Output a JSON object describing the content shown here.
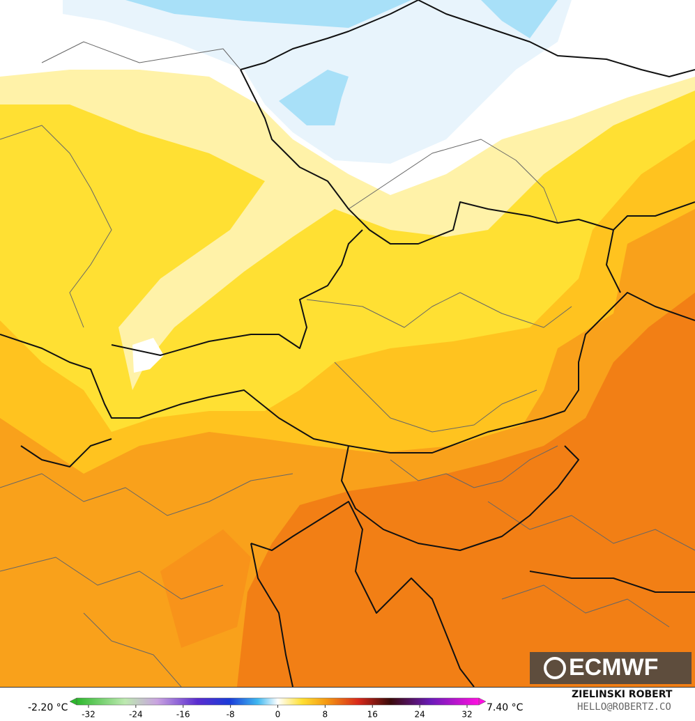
{
  "map": {
    "logo": "ECMWF",
    "colorbar": {
      "min_label": "-2.20 °C",
      "max_label": "7.40 °C",
      "lim": [
        -34,
        34
      ],
      "ticks": [
        -32,
        -24,
        -16,
        -8,
        0,
        8,
        16,
        24,
        32
      ]
    },
    "credit": {
      "name": "ZIELINSKI ROBERT",
      "email": "HELLO@ROBERTZ.CO"
    }
  }
}
